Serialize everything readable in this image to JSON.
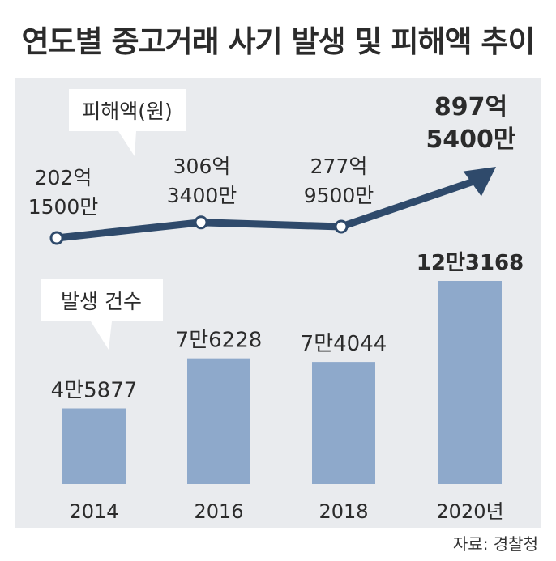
{
  "title": "연도별 중고거래 사기 발생 및 피해액 추이",
  "source": "자료: 경찰청",
  "colors": {
    "panel": "#e9ebee",
    "line": "#2f4a6b",
    "bar": "#8ea9cb",
    "text": "#2b2b2b"
  },
  "chart_data": {
    "type": "bar",
    "categories": [
      "2014",
      "2016",
      "2018",
      "2020년"
    ],
    "series": [
      {
        "name": "피해액(원)",
        "type": "line",
        "values": [
          20215000000,
          30634000000,
          27795000000,
          89754000000
        ],
        "labels": [
          [
            "202억",
            "1500만"
          ],
          [
            "306억",
            "3400만"
          ],
          [
            "277억",
            "9500만"
          ],
          [
            "897억",
            "5400만"
          ]
        ]
      },
      {
        "name": "발생 건수",
        "type": "bar",
        "values": [
          45877,
          76228,
          74044,
          123168
        ],
        "labels": [
          "4만5877",
          "7만6228",
          "7만4044",
          "12만3168"
        ]
      }
    ]
  }
}
